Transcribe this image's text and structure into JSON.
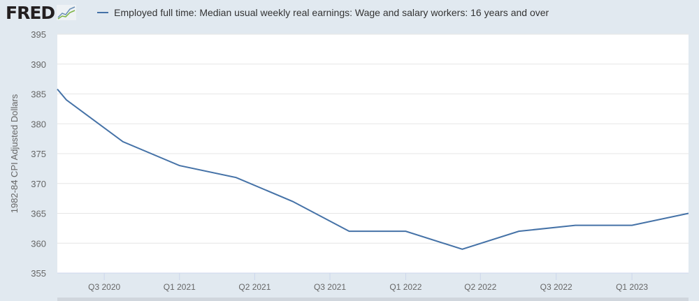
{
  "header": {
    "logo": "FRED",
    "logo_icon": "line-chart-icon"
  },
  "chart_data": {
    "type": "line",
    "title": "",
    "xlabel": "",
    "ylabel": "1982-84 CPI Adjusted Dollars",
    "ylim": [
      355,
      395
    ],
    "yticks": [
      355,
      360,
      365,
      370,
      375,
      380,
      385,
      390,
      395
    ],
    "xlim": [
      -1.16,
      10
    ],
    "xticks": [
      {
        "x": -0.33,
        "label": "Q3 2020"
      },
      {
        "x": 1,
        "label": "Q1 2021"
      },
      {
        "x": 2.33,
        "label": "Q2 2021"
      },
      {
        "x": 3.66,
        "label": "Q3 2021"
      },
      {
        "x": 5,
        "label": "Q1 2022"
      },
      {
        "x": 6.32,
        "label": "Q2 2022"
      },
      {
        "x": 7.66,
        "label": "Q3 2022"
      },
      {
        "x": 9,
        "label": "Q1 2023"
      }
    ],
    "grid": true,
    "legend_placement": "top",
    "series": [
      {
        "name": "Employed full time: Median usual weekly real earnings: Wage and salary workers: 16 years and over",
        "color": "#4572a7",
        "x": [
          -1.16,
          -1,
          0,
          1,
          2,
          3,
          4,
          5,
          6,
          7,
          8,
          9,
          10
        ],
        "values": [
          385.8,
          384,
          377,
          373,
          371,
          367,
          362,
          362,
          359,
          362,
          363,
          363,
          365
        ]
      }
    ]
  }
}
